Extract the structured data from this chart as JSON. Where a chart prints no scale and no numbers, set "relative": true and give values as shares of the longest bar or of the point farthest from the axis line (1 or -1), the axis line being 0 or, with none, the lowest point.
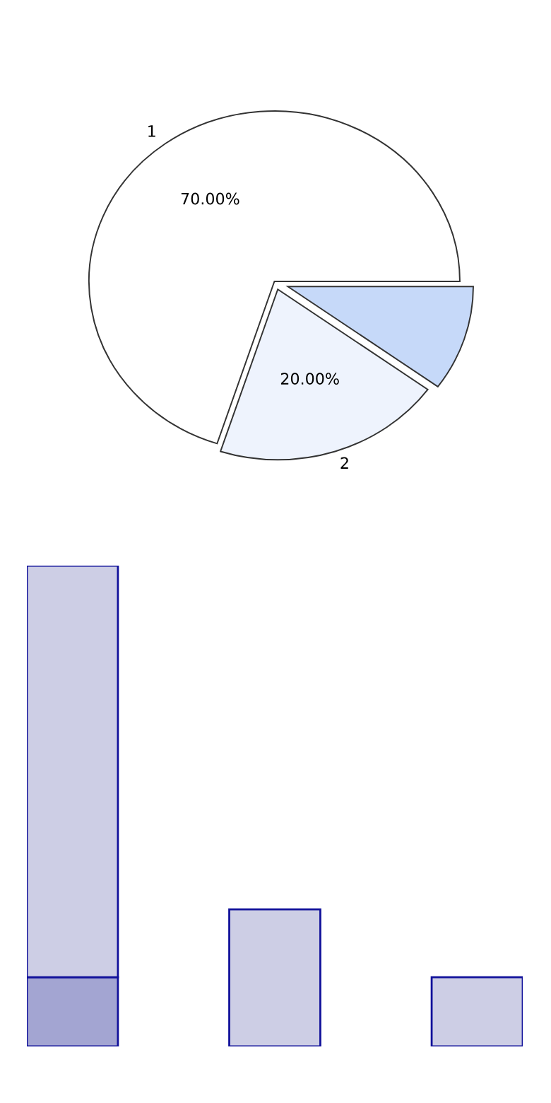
{
  "chart_data": [
    {
      "type": "pie",
      "categories": [
        "1",
        "2",
        null
      ],
      "values": [
        70,
        20,
        10
      ],
      "colors": [
        "#ffffff",
        "#eef3fd",
        "#c6d9f9"
      ],
      "value_labels": [
        "70.00%",
        "20.00%",
        null
      ]
    },
    {
      "type": "bar",
      "stacked": true,
      "relative": true,
      "categories": [
        null,
        null,
        null
      ],
      "series": [
        {
          "color": "#a3a5d2",
          "values": [
            0.144,
            null,
            null
          ]
        },
        {
          "color": "#cdcee5",
          "values": [
            0.856,
            0.285,
            0.144
          ]
        }
      ]
    }
  ]
}
